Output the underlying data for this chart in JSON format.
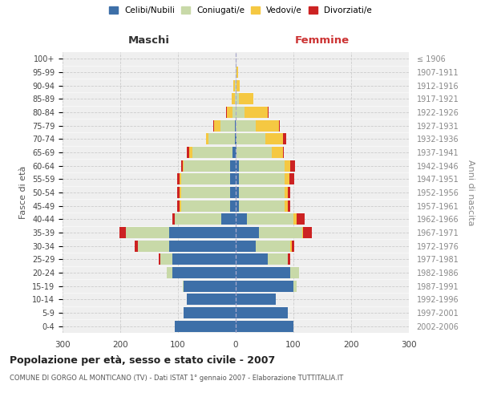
{
  "age_groups": [
    "0-4",
    "5-9",
    "10-14",
    "15-19",
    "20-24",
    "25-29",
    "30-34",
    "35-39",
    "40-44",
    "45-49",
    "50-54",
    "55-59",
    "60-64",
    "65-69",
    "70-74",
    "75-79",
    "80-84",
    "85-89",
    "90-94",
    "95-99",
    "100+"
  ],
  "birth_years": [
    "2002-2006",
    "1997-2001",
    "1992-1996",
    "1987-1991",
    "1982-1986",
    "1977-1981",
    "1972-1976",
    "1967-1971",
    "1962-1966",
    "1957-1961",
    "1952-1956",
    "1947-1951",
    "1942-1946",
    "1937-1941",
    "1932-1936",
    "1927-1931",
    "1922-1926",
    "1917-1921",
    "1912-1916",
    "1907-1911",
    "≤ 1906"
  ],
  "maschi": {
    "celibi": [
      105,
      90,
      85,
      90,
      110,
      110,
      115,
      115,
      25,
      10,
      10,
      10,
      10,
      5,
      2,
      2,
      0,
      0,
      0,
      0,
      0
    ],
    "coniugati": [
      0,
      0,
      0,
      2,
      10,
      20,
      55,
      75,
      80,
      85,
      85,
      85,
      80,
      70,
      45,
      25,
      5,
      2,
      2,
      0,
      0
    ],
    "vedovi": [
      0,
      0,
      0,
      0,
      0,
      0,
      0,
      0,
      0,
      2,
      2,
      2,
      2,
      5,
      5,
      10,
      10,
      5,
      2,
      0,
      0
    ],
    "divorziati": [
      0,
      0,
      0,
      0,
      0,
      3,
      5,
      12,
      5,
      5,
      5,
      5,
      2,
      5,
      0,
      2,
      2,
      0,
      0,
      0,
      0
    ]
  },
  "femmine": {
    "nubili": [
      100,
      90,
      70,
      100,
      95,
      55,
      35,
      40,
      20,
      5,
      5,
      5,
      5,
      2,
      2,
      0,
      0,
      0,
      0,
      0,
      0
    ],
    "coniugate": [
      0,
      0,
      0,
      5,
      15,
      35,
      60,
      75,
      80,
      80,
      80,
      80,
      80,
      60,
      50,
      35,
      15,
      5,
      2,
      2,
      0
    ],
    "vedove": [
      0,
      0,
      0,
      0,
      0,
      0,
      2,
      2,
      5,
      5,
      5,
      8,
      10,
      20,
      30,
      40,
      40,
      25,
      5,
      2,
      0
    ],
    "divorziate": [
      0,
      0,
      0,
      0,
      0,
      5,
      5,
      15,
      15,
      5,
      5,
      8,
      8,
      2,
      5,
      2,
      2,
      0,
      0,
      0,
      0
    ]
  },
  "colors": {
    "celibi": "#3d6fa8",
    "coniugati": "#c8d9a8",
    "vedovi": "#f5c842",
    "divorziati": "#cc2222"
  },
  "title": "Popolazione per età, sesso e stato civile - 2007",
  "subtitle": "COMUNE DI GORGO AL MONTICANO (TV) - Dati ISTAT 1° gennaio 2007 - Elaborazione TUTTITALIA.IT",
  "xlabel_left": "Maschi",
  "xlabel_right": "Femmine",
  "ylabel_left": "Fasce di età",
  "ylabel_right": "Anni di nascita",
  "xlim": 300,
  "bg_color": "#ffffff",
  "grid_color": "#cccccc",
  "legend_labels": [
    "Celibi/Nubili",
    "Coniugati/e",
    "Vedovi/e",
    "Divorziati/e"
  ]
}
